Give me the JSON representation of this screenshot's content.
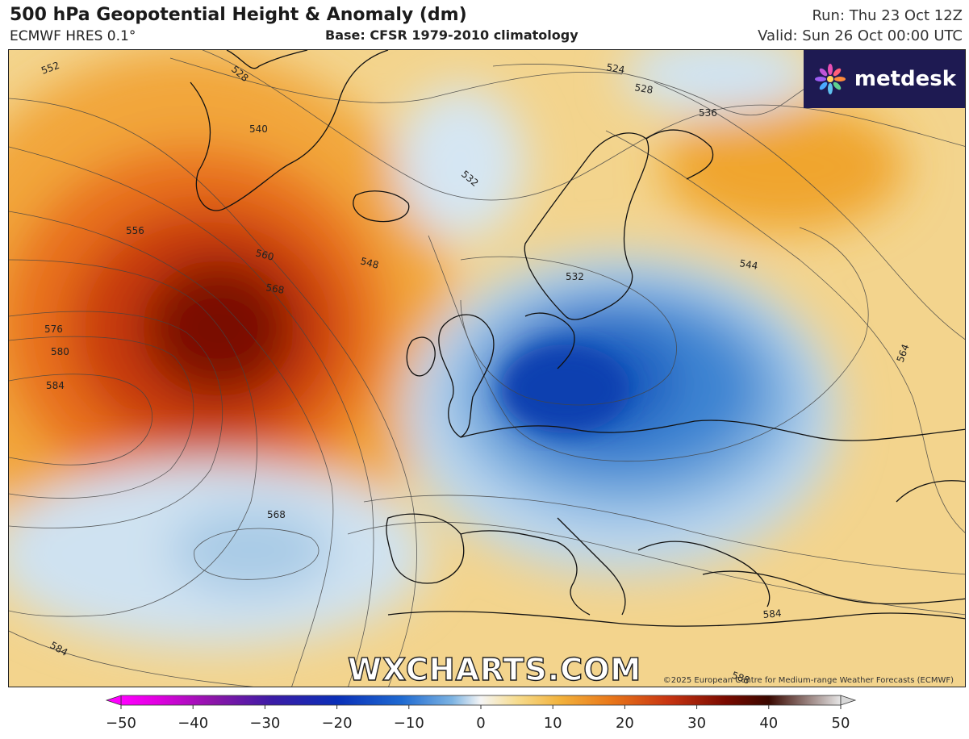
{
  "header": {
    "title": "500 hPa Geopotential Height & Anomaly (dm)",
    "model": "ECMWF HRES 0.1°",
    "base": "Base: CFSR 1979-2010 climatology",
    "run": "Run: Thu 23 Oct 12Z",
    "valid": "Valid: Sun 26 Oct 00:00 UTC"
  },
  "branding": {
    "logo_text": "metdesk",
    "logo_icon": "flower-icon",
    "watermark": "WXCHARTS.COM",
    "copyright": "©2025 European Centre for Medium-range Weather Forecasts (ECMWF)"
  },
  "contour_labels": [
    "552",
    "528",
    "524",
    "528",
    "536",
    "540",
    "532",
    "556",
    "548",
    "560",
    "568",
    "544",
    "532",
    "576",
    "580",
    "584",
    "564",
    "568",
    "584",
    "584",
    "588"
  ],
  "colorbar": {
    "ticks": [
      "−50",
      "−40",
      "−30",
      "−20",
      "−10",
      "0",
      "10",
      "20",
      "30",
      "40",
      "50"
    ]
  },
  "colors": {
    "logo_bg": "#1e1a52",
    "cold_deep": "#0a3fb0",
    "warm_deep": "#7a0a00"
  }
}
